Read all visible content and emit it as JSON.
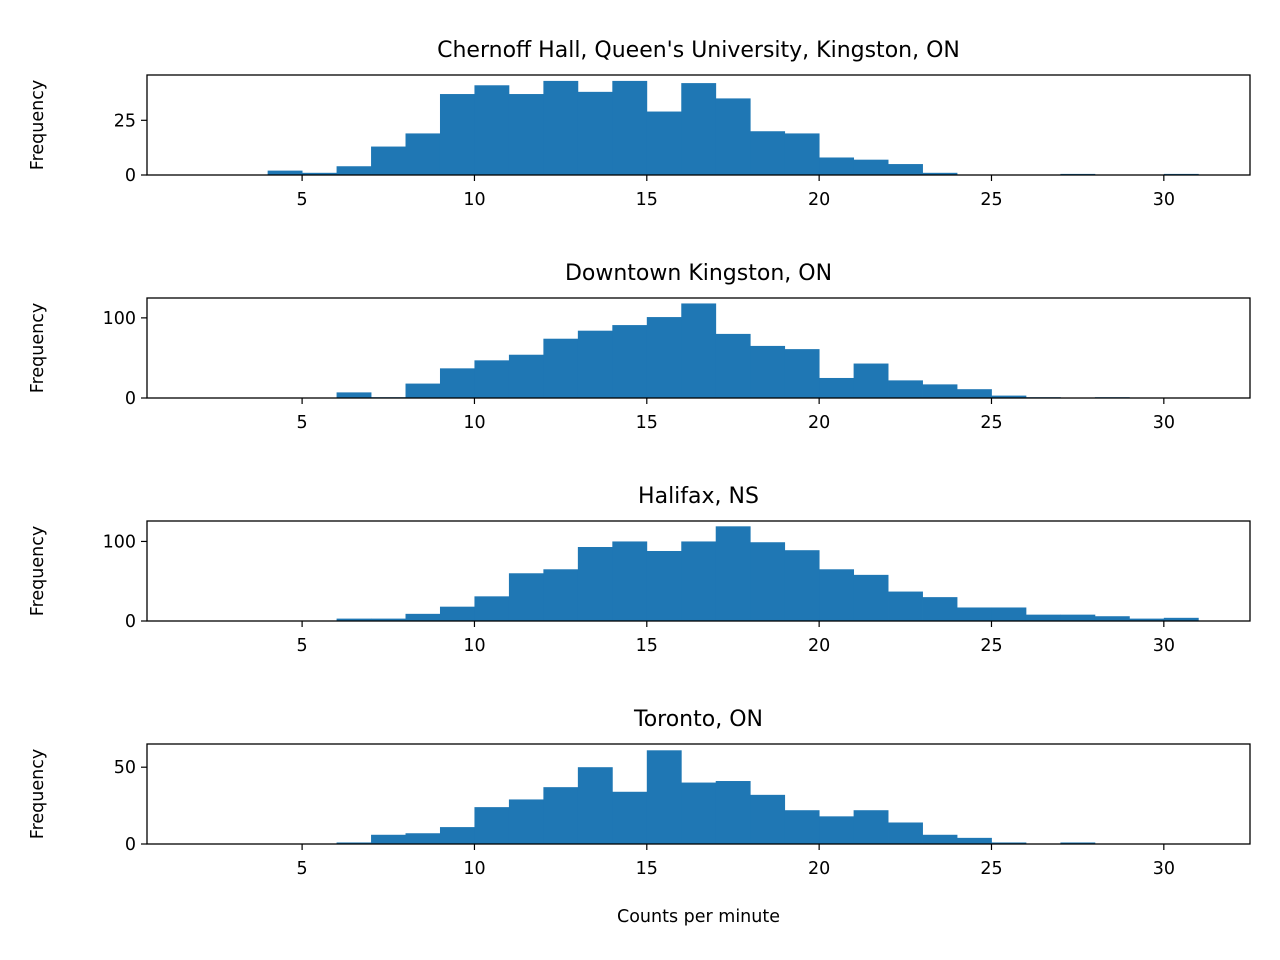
{
  "chart_data": [
    {
      "type": "bar",
      "title": "Chernoff Hall, Queen's University, Kingston, ON",
      "xlabel": "",
      "ylabel": "Frequency",
      "xlim": [
        0.5,
        32.5
      ],
      "ylim": [
        0,
        45.7
      ],
      "xticks": [
        5,
        10,
        15,
        20,
        25,
        30
      ],
      "yticks": [
        0,
        25
      ],
      "bin_edges": [
        1,
        2,
        3,
        4,
        5,
        6,
        7,
        8,
        9,
        10,
        11,
        12,
        13,
        14,
        15,
        16,
        17,
        18,
        19,
        20,
        21,
        22,
        23,
        24,
        25,
        26,
        27,
        28,
        29,
        30,
        31
      ],
      "values": [
        0,
        0,
        0,
        2,
        1,
        4,
        13,
        19,
        37,
        41,
        37,
        43,
        38,
        43,
        29,
        42,
        35,
        20,
        19,
        8,
        7,
        5,
        1,
        0,
        0,
        0,
        0.5,
        0,
        0,
        0.5
      ],
      "color": "#1f77b4",
      "grid": false
    },
    {
      "type": "bar",
      "title": "Downtown Kingston, ON",
      "xlabel": "",
      "ylabel": "Frequency",
      "xlim": [
        0.5,
        32.5
      ],
      "ylim": [
        0,
        124.8
      ],
      "xticks": [
        5,
        10,
        15,
        20,
        25,
        30
      ],
      "yticks": [
        0,
        100
      ],
      "bin_edges": [
        1,
        2,
        3,
        4,
        5,
        6,
        7,
        8,
        9,
        10,
        11,
        12,
        13,
        14,
        15,
        16,
        17,
        18,
        19,
        20,
        21,
        22,
        23,
        24,
        25,
        26,
        27,
        28,
        29,
        30,
        31
      ],
      "values": [
        0,
        0,
        0,
        0,
        0,
        7,
        1,
        18,
        37,
        47,
        54,
        74,
        84,
        91,
        101,
        118,
        80,
        65,
        61,
        25,
        43,
        22,
        17,
        11,
        3,
        1,
        0,
        1,
        0,
        0
      ],
      "color": "#1f77b4",
      "grid": false
    },
    {
      "type": "bar",
      "title": "Halifax, NS",
      "xlabel": "",
      "ylabel": "Frequency",
      "xlim": [
        0.5,
        32.5
      ],
      "ylim": [
        0,
        125.7
      ],
      "xticks": [
        5,
        10,
        15,
        20,
        25,
        30
      ],
      "yticks": [
        0,
        100
      ],
      "bin_edges": [
        1,
        2,
        3,
        4,
        5,
        6,
        7,
        8,
        9,
        10,
        11,
        12,
        13,
        14,
        15,
        16,
        17,
        18,
        19,
        20,
        21,
        22,
        23,
        24,
        25,
        26,
        27,
        28,
        29,
        30,
        31
      ],
      "values": [
        0,
        0,
        0,
        0,
        0,
        3,
        3,
        9,
        18,
        31,
        60,
        65,
        93,
        100,
        88,
        100,
        119,
        99,
        89,
        65,
        58,
        37,
        30,
        17,
        17,
        8,
        8,
        6,
        3,
        4
      ],
      "color": "#1f77b4",
      "grid": false
    },
    {
      "type": "bar",
      "title": "Toronto, ON",
      "xlabel": "Counts per minute",
      "ylabel": "Frequency",
      "xlim": [
        0.5,
        32.5
      ],
      "ylim": [
        0,
        65.1
      ],
      "xticks": [
        5,
        10,
        15,
        20,
        25,
        30
      ],
      "yticks": [
        0,
        50
      ],
      "bin_edges": [
        1,
        2,
        3,
        4,
        5,
        6,
        7,
        8,
        9,
        10,
        11,
        12,
        13,
        14,
        15,
        16,
        17,
        18,
        19,
        20,
        21,
        22,
        23,
        24,
        25,
        26,
        27,
        28,
        29,
        30,
        31
      ],
      "values": [
        0,
        0,
        0,
        0,
        0,
        1,
        6,
        7,
        11,
        24,
        29,
        37,
        50,
        34,
        61,
        40,
        41,
        32,
        22,
        18,
        22,
        14,
        6,
        4,
        1,
        0,
        1,
        0,
        0,
        0
      ],
      "color": "#1f77b4",
      "grid": false
    }
  ]
}
